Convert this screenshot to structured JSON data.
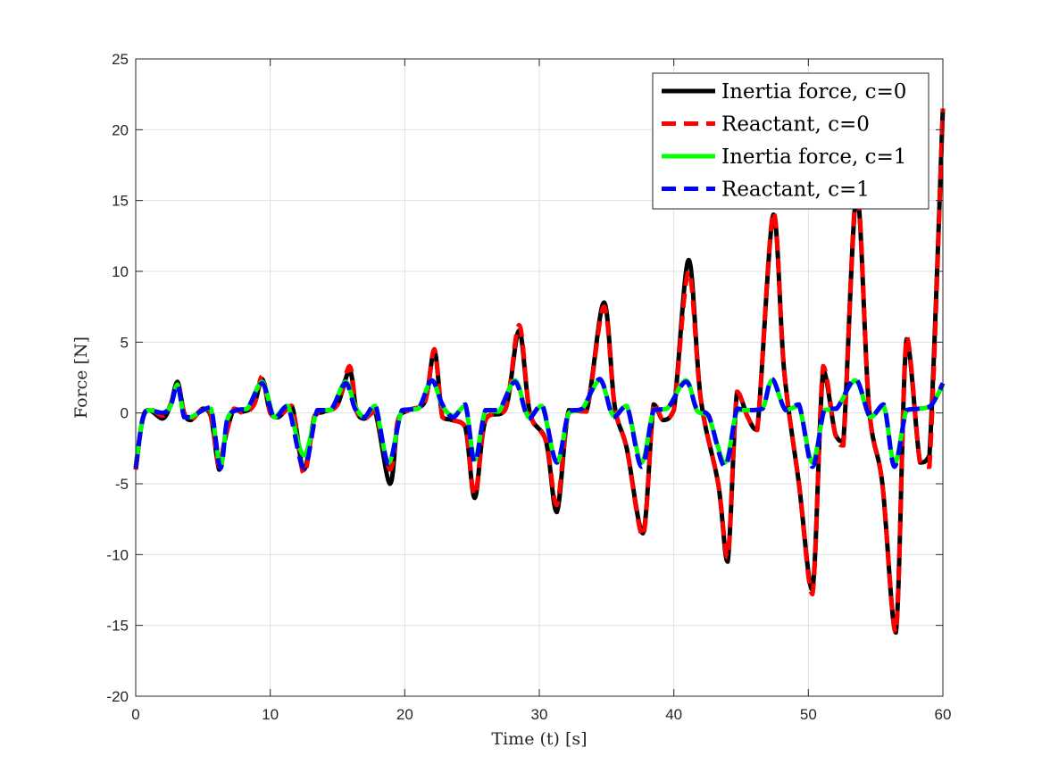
{
  "chart_data": {
    "type": "line",
    "xlabel": "Time (t) [s]",
    "ylabel": "Force [N]",
    "xlim": [
      0,
      60
    ],
    "ylim": [
      -20,
      25
    ],
    "xticks": [
      0,
      10,
      20,
      30,
      40,
      50,
      60
    ],
    "yticks": [
      -20,
      -15,
      -10,
      -5,
      0,
      5,
      10,
      15,
      20,
      25
    ],
    "grid": true,
    "legend_position": "top-right",
    "series": [
      {
        "name": "Inertia force, c=0",
        "color": "#000000",
        "style": "solid",
        "x": [
          0,
          0.5,
          1,
          2,
          2.6,
          3.1,
          3.6,
          4.1,
          5,
          5.6,
          6.2,
          6.6,
          7.3,
          8,
          8.8,
          9.4,
          10,
          10.6,
          11.6,
          12.5,
          13.3,
          14,
          15,
          15.9,
          16.4,
          17,
          17.8,
          18.9,
          19.5,
          20.3,
          21.5,
          22.2,
          22.8,
          23.5,
          24.5,
          25.2,
          26,
          27.5,
          28.5,
          29.3,
          30.5,
          31.3,
          32.2,
          33.5,
          34.8,
          35.6,
          36.5,
          37.7,
          38.5,
          39.2,
          40,
          41.1,
          42,
          43.3,
          44,
          44.7,
          45.5,
          46.2,
          47.4,
          48.2,
          49.3,
          50.3,
          51.1,
          52,
          52.6,
          53.6,
          54.5,
          55.5,
          56.5,
          57.3,
          58.3,
          59,
          60
        ],
        "y": [
          -4,
          -0.5,
          0.2,
          -0.4,
          0.6,
          2.2,
          0,
          -0.5,
          0.3,
          -0.3,
          -4,
          -2,
          0.3,
          0.1,
          0.6,
          2.4,
          0,
          -0.3,
          0.5,
          -4,
          -0.2,
          0.1,
          0.6,
          3,
          0.2,
          -0.4,
          0.1,
          -5,
          -0.5,
          0.2,
          0.8,
          4.4,
          -0.3,
          -0.5,
          -1,
          -6,
          -0.5,
          0.3,
          5.8,
          0,
          -2,
          -7,
          0.2,
          0.1,
          7.8,
          0.5,
          -2.5,
          -8.5,
          0.6,
          -0.5,
          0.2,
          10.8,
          1,
          -5,
          -10.5,
          1.5,
          -0.3,
          -1.2,
          14,
          3,
          -5,
          -12.5,
          3,
          -1.5,
          -2,
          15.5,
          0.5,
          -5,
          -15.5,
          5.2,
          -3.5,
          -3,
          21.5
        ]
      },
      {
        "name": "Reactant, c=0",
        "color": "#ff0000",
        "style": "dashed",
        "x": [
          0,
          0.5,
          1,
          2,
          2.6,
          3.1,
          3.6,
          4.1,
          5,
          5.6,
          6.2,
          6.6,
          7.3,
          8,
          8.8,
          9.4,
          10,
          10.6,
          11.6,
          12.5,
          13.3,
          14,
          15,
          15.9,
          16.4,
          17,
          17.8,
          18.9,
          19.5,
          20.3,
          21.5,
          22.2,
          22.8,
          23.5,
          24.5,
          25.2,
          26,
          27.5,
          28.5,
          29.3,
          30.5,
          31.3,
          32.2,
          33.5,
          34.8,
          35.6,
          36.5,
          37.7,
          38.5,
          39.2,
          40,
          41.1,
          42,
          43.3,
          44,
          44.7,
          45.5,
          46.2,
          47.4,
          48.2,
          49.3,
          50.3,
          51.1,
          52,
          52.6,
          53.6,
          54.5,
          55.5,
          56.5,
          57.3,
          58.3,
          59,
          60
        ],
        "y": [
          -4,
          -0.5,
          0.3,
          -0.2,
          0.6,
          2,
          0,
          -0.5,
          0.3,
          -0.3,
          -3.8,
          -2,
          0.3,
          0,
          0.6,
          2.6,
          0,
          -0.3,
          0.5,
          -4.3,
          -0.2,
          0.1,
          0.6,
          3.3,
          0.2,
          -0.4,
          0.1,
          -4,
          -0.5,
          0.2,
          0.8,
          4.5,
          -0.3,
          -0.5,
          -1,
          -5.8,
          -0.5,
          0.3,
          6.2,
          0,
          -2,
          -6.5,
          0.2,
          0.1,
          7.5,
          0.5,
          -2.5,
          -8.7,
          0.7,
          -0.5,
          0.2,
          10,
          1,
          -5,
          -10.2,
          1.5,
          -0.3,
          -1.2,
          14.2,
          3,
          -5,
          -12.8,
          3.3,
          -1.5,
          -2.3,
          15.8,
          0.5,
          -5,
          -15.5,
          5.4,
          -3.5,
          -3.8,
          21.5
        ]
      },
      {
        "name": "Inertia force, c=1",
        "color": "#00ff00",
        "style": "solid",
        "x": [
          0,
          0.5,
          1,
          2,
          2.6,
          3.1,
          3.6,
          4.1,
          5,
          5.6,
          6.3,
          6.8,
          7.5,
          8.3,
          9.4,
          10.3,
          11.3,
          12.5,
          13.5,
          14.5,
          15.6,
          16.3,
          17,
          17.8,
          18.8,
          19.8,
          21,
          22,
          22.8,
          23.6,
          24.5,
          25.2,
          26,
          27,
          28.2,
          29.2,
          30.2,
          31.3,
          32.2,
          33.2,
          34.5,
          35.5,
          36.5,
          37.6,
          38.5,
          39.5,
          40.9,
          41.7,
          42.6,
          43.8,
          44.7,
          45.6,
          46.6,
          47.3,
          48.3,
          49.3,
          50.3,
          51.2,
          52.1,
          53.5,
          54.6,
          55.6,
          56.4,
          57.3,
          58.2,
          59.1,
          60
        ],
        "y": [
          -3.8,
          -0.5,
          0.2,
          0,
          0.5,
          2,
          -0.3,
          -0.3,
          0.2,
          0.3,
          -3.8,
          -0.5,
          0.2,
          0.3,
          2.2,
          -0.3,
          0.5,
          -3,
          0.2,
          0.2,
          2.2,
          0.5,
          -0.3,
          0.5,
          -3.5,
          0.2,
          0.3,
          2.3,
          0.5,
          -0.2,
          0.5,
          -3.3,
          0.2,
          0.1,
          2.3,
          -0.3,
          0.5,
          -3.5,
          0,
          0.3,
          2.3,
          -0.2,
          0.5,
          -3.5,
          0.2,
          0.3,
          2.3,
          0.2,
          -0.3,
          -3.5,
          0.2,
          0.2,
          0.3,
          2.3,
          0.2,
          0.5,
          -3.5,
          0.2,
          0.3,
          2.3,
          -0.3,
          0.5,
          -3.6,
          0.2,
          0.3,
          0.5,
          2
        ]
      },
      {
        "name": "Reactant, c=1",
        "color": "#0000ff",
        "style": "dashed",
        "x": [
          0,
          0.5,
          1,
          2,
          2.6,
          3.1,
          3.6,
          4.1,
          5,
          5.6,
          6.3,
          6.8,
          7.5,
          8.3,
          9.4,
          10.3,
          11.3,
          12.5,
          13.5,
          14.5,
          15.6,
          16.3,
          17,
          17.8,
          18.8,
          19.8,
          21,
          22,
          22.8,
          23.6,
          24.5,
          25.2,
          26,
          27,
          28.2,
          29.2,
          30.2,
          31.3,
          32.2,
          33.2,
          34.5,
          35.5,
          36.5,
          37.6,
          38.5,
          39.5,
          40.9,
          41.7,
          42.6,
          43.8,
          44.7,
          45.6,
          46.6,
          47.3,
          48.3,
          49.3,
          50.3,
          51.2,
          52.1,
          53.5,
          54.6,
          55.6,
          56.4,
          57.3,
          58.2,
          59.1,
          60
        ],
        "y": [
          -3.9,
          -0.5,
          0.2,
          0,
          0.5,
          2,
          -0.3,
          -0.3,
          0.2,
          0.4,
          -3.9,
          -0.5,
          0.2,
          0.3,
          2.1,
          -0.4,
          0.5,
          -3.9,
          0.2,
          0.2,
          2.1,
          0.3,
          -0.3,
          0.6,
          -3.6,
          0.2,
          0.3,
          2.3,
          0.6,
          -0.3,
          0.6,
          -3.5,
          0.2,
          0.2,
          2.2,
          -0.4,
          0.6,
          -3.5,
          0.1,
          0.3,
          2.4,
          -0.3,
          0.5,
          -3.8,
          0.2,
          0.3,
          2.2,
          0.3,
          -0.2,
          -3.8,
          0.3,
          0.2,
          0.3,
          2.4,
          0.2,
          0.6,
          -3.8,
          0.3,
          0.3,
          2.4,
          -0.3,
          0.6,
          -3.8,
          0.2,
          0.3,
          0.5,
          2.1
        ]
      }
    ]
  }
}
